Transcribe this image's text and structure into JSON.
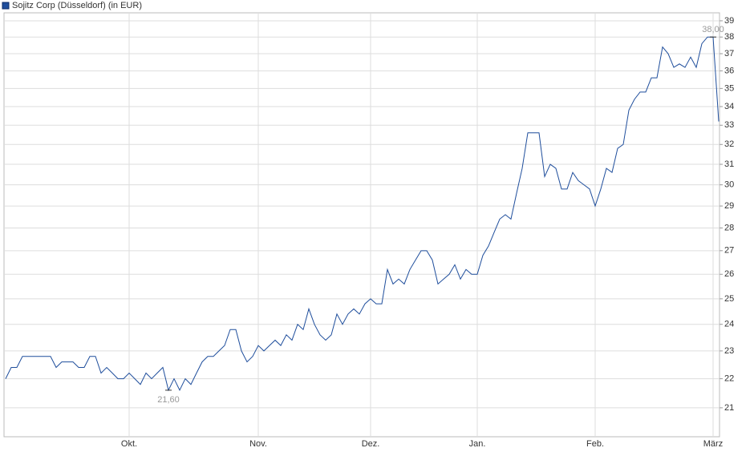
{
  "chart_data": {
    "type": "line",
    "categories": [
      null,
      null,
      null,
      null,
      null,
      null,
      null,
      null,
      null,
      null,
      null,
      null,
      null,
      null,
      null,
      null,
      null,
      null,
      null,
      null,
      null,
      null,
      "Okt.",
      null,
      null,
      null,
      null,
      null,
      null,
      null,
      null,
      null,
      null,
      null,
      null,
      null,
      null,
      null,
      null,
      null,
      null,
      null,
      null,
      null,
      null,
      "Nov.",
      null,
      null,
      null,
      null,
      null,
      null,
      null,
      null,
      null,
      null,
      null,
      null,
      null,
      null,
      null,
      null,
      null,
      null,
      null,
      "Dez.",
      null,
      null,
      null,
      null,
      null,
      null,
      null,
      null,
      null,
      null,
      null,
      null,
      null,
      null,
      null,
      null,
      null,
      null,
      "Jan.",
      null,
      null,
      null,
      null,
      null,
      null,
      null,
      null,
      null,
      null,
      null,
      null,
      null,
      null,
      null,
      null,
      null,
      null,
      null,
      null,
      "Feb.",
      null,
      null,
      null,
      null,
      null,
      null,
      null,
      null,
      null,
      null,
      null,
      null,
      null,
      null,
      null,
      null,
      null,
      null,
      null,
      null,
      "März",
      null
    ],
    "series": [
      {
        "name": "Sojitz Corp (Düsseldorf) (in EUR)",
        "color": "#1f4e9c",
        "values": [
          22.0,
          22.4,
          22.4,
          22.8,
          22.8,
          22.8,
          22.8,
          22.8,
          22.8,
          22.4,
          22.6,
          22.6,
          22.6,
          22.4,
          22.4,
          22.8,
          22.8,
          22.2,
          22.4,
          22.2,
          22.0,
          22.0,
          22.2,
          22.0,
          21.8,
          22.2,
          22.0,
          22.2,
          22.4,
          21.6,
          22.0,
          21.6,
          22.0,
          21.8,
          22.2,
          22.6,
          22.8,
          22.8,
          23.0,
          23.2,
          23.8,
          23.8,
          23.0,
          22.6,
          22.8,
          23.2,
          23.0,
          23.2,
          23.4,
          23.2,
          23.6,
          23.4,
          24.0,
          23.8,
          24.6,
          24.0,
          23.6,
          23.4,
          23.6,
          24.4,
          24.0,
          24.4,
          24.6,
          24.4,
          24.8,
          25.0,
          24.8,
          24.8,
          26.2,
          25.6,
          25.8,
          25.6,
          26.2,
          26.6,
          27.0,
          27.0,
          26.6,
          25.6,
          25.8,
          26.0,
          26.4,
          25.8,
          26.2,
          26.0,
          26.0,
          26.8,
          27.2,
          27.8,
          28.4,
          28.6,
          28.4,
          29.6,
          30.8,
          32.6,
          32.6,
          32.6,
          30.4,
          31.0,
          30.8,
          29.8,
          29.8,
          30.6,
          30.2,
          30.0,
          29.8,
          29.0,
          29.8,
          30.8,
          30.6,
          31.8,
          32.0,
          33.8,
          34.4,
          34.8,
          34.8,
          35.6,
          35.6,
          37.4,
          37.0,
          36.2,
          36.4,
          36.2,
          36.8,
          36.2,
          37.6,
          38.0,
          38.0,
          33.2
        ],
        "value_labels": [
          null,
          null,
          null,
          null,
          null,
          null,
          null,
          null,
          null,
          null,
          null,
          null,
          null,
          null,
          null,
          null,
          null,
          null,
          null,
          null,
          null,
          null,
          null,
          null,
          null,
          null,
          null,
          null,
          null,
          "21,60",
          null,
          null,
          null,
          null,
          null,
          null,
          null,
          null,
          null,
          null,
          null,
          null,
          null,
          null,
          null,
          null,
          null,
          null,
          null,
          null,
          null,
          null,
          null,
          null,
          null,
          null,
          null,
          null,
          null,
          null,
          null,
          null,
          null,
          null,
          null,
          null,
          null,
          null,
          null,
          null,
          null,
          null,
          null,
          null,
          null,
          null,
          null,
          null,
          null,
          null,
          null,
          null,
          null,
          null,
          null,
          null,
          null,
          null,
          null,
          null,
          null,
          null,
          null,
          null,
          null,
          null,
          null,
          null,
          null,
          null,
          null,
          null,
          null,
          null,
          null,
          null,
          null,
          null,
          null,
          null,
          null,
          null,
          null,
          null,
          null,
          null,
          null,
          null,
          null,
          null,
          null,
          null,
          null,
          null,
          null,
          null,
          "38,00",
          null
        ]
      }
    ],
    "ylim": [
      20.05,
      39.5
    ],
    "yticks": [
      21,
      22,
      23,
      24,
      25,
      26,
      27,
      28,
      29,
      30,
      31,
      32,
      33,
      34,
      35,
      36,
      37,
      38,
      39
    ],
    "log_scale": true,
    "grid": true
  }
}
